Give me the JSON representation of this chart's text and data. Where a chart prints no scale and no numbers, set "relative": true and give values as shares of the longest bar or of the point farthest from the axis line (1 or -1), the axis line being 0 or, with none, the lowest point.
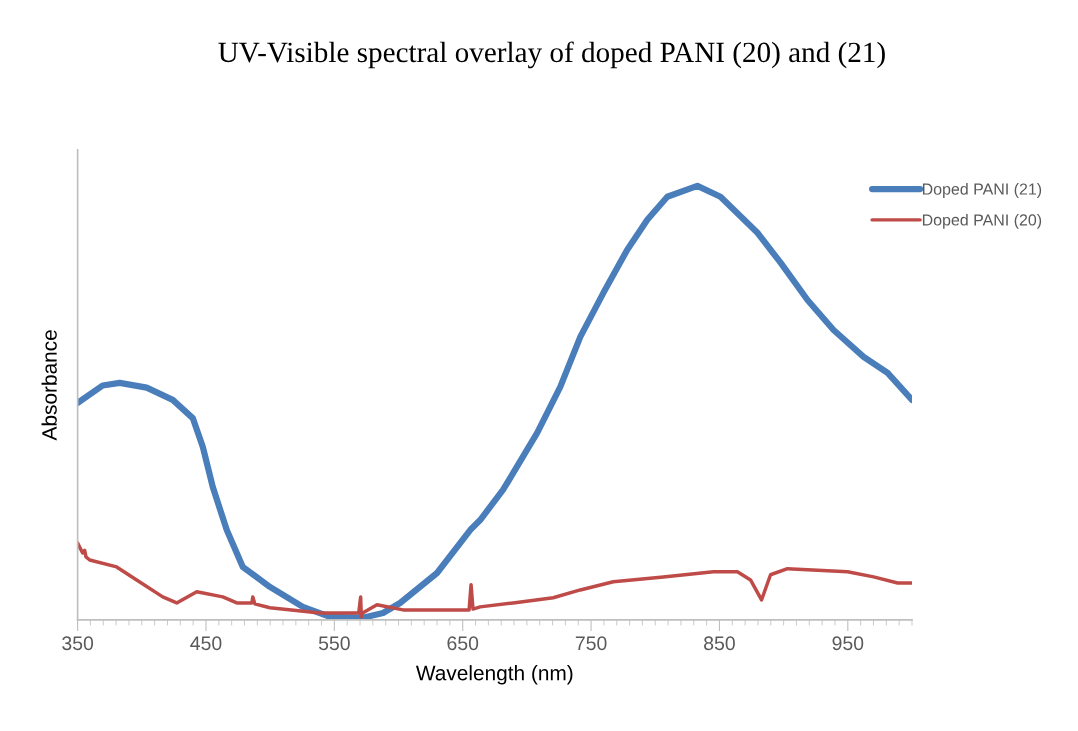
{
  "chart_data": {
    "type": "line",
    "title": "UV-Visible spectral overlay of doped PANI (20) and (21)",
    "xlabel": "Wavelength (nm)",
    "ylabel": "Absorbance",
    "relative": true,
    "xlim": [
      350,
      1000
    ],
    "xticks": [
      350,
      450,
      550,
      650,
      750,
      850,
      950
    ],
    "legend": "right",
    "grid": false,
    "marker": "none",
    "line_style": "solid",
    "series": [
      {
        "name": "Doped PANI (21)",
        "color": "#4a7ebb",
        "x": [
          350,
          369.5,
          382.8,
          403.8,
          424.1,
          439.7,
          447.5,
          455.3,
          466.2,
          478.7,
          499.8,
          525.5,
          546.6,
          572.3,
          587.9,
          601.2,
          630,
          655.8,
          663.6,
          681.5,
          708,
          726,
          741.6,
          759.5,
          778.2,
          793.8,
          809.4,
          832.8,
          850.8,
          879.6,
          897.6,
          918.6,
          938.9,
          962.3,
          981,
          1000
        ],
        "values": [
          0.5,
          0.54,
          0.546,
          0.535,
          0.507,
          0.465,
          0.399,
          0.306,
          0.207,
          0.122,
          0.076,
          0.03,
          0.007,
          0.005,
          0.016,
          0.039,
          0.108,
          0.207,
          0.23,
          0.3,
          0.431,
          0.537,
          0.652,
          0.753,
          0.853,
          0.922,
          0.975,
          1.0,
          0.975,
          0.892,
          0.823,
          0.737,
          0.668,
          0.606,
          0.569,
          0.507
        ]
      },
      {
        "name": "Doped PANI (20)",
        "color": "#be4b48",
        "x": [
          350,
          353.9,
          355.5,
          356.5,
          359.4,
          380.4,
          396,
          416.3,
          427.2,
          442.8,
          463.1,
          474,
          485.7,
          486.5,
          488,
          499.8,
          538.8,
          567.6,
          569,
          570.5,
          571,
          572,
          583.2,
          603.5,
          642.5,
          655,
          656.5,
          658,
          663.6,
          689.3,
          720.5,
          741.6,
          767.3,
          806.3,
          845.3,
          864,
          874.2,
          882.8,
          889.8,
          903,
          949.8,
          970.1,
          988.8,
          1000
        ],
        "values": [
          0.177,
          0.154,
          0.16,
          0.145,
          0.138,
          0.122,
          0.092,
          0.053,
          0.039,
          0.065,
          0.053,
          0.039,
          0.039,
          0.053,
          0.037,
          0.028,
          0.016,
          0.016,
          0.016,
          0.053,
          0.007,
          0.016,
          0.035,
          0.023,
          0.023,
          0.023,
          0.081,
          0.025,
          0.03,
          0.039,
          0.051,
          0.069,
          0.088,
          0.099,
          0.111,
          0.111,
          0.092,
          0.046,
          0.104,
          0.118,
          0.111,
          0.099,
          0.085,
          0.085
        ]
      }
    ]
  }
}
